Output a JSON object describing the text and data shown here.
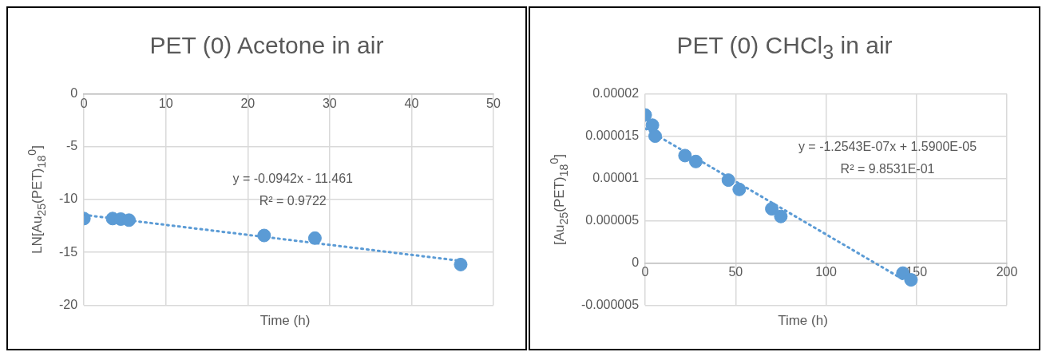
{
  "chart_data": [
    {
      "type": "scatter",
      "title": "PET (0) Acetone in air",
      "xlabel": "Time (h)",
      "ylabel": "LN[Au$_{25}$(PET)$_{18}$$^{0}$]",
      "xlim": [
        0,
        50
      ],
      "xticks": [
        0,
        10,
        20,
        30,
        40,
        50
      ],
      "ylim": [
        -20,
        0
      ],
      "yticks": [
        -20,
        -15,
        -10,
        -5,
        0
      ],
      "grid": true,
      "annotations": [
        "y = -0.0942x - 11.461",
        "R² = 0.9722"
      ],
      "series": [
        {
          "marker": "circle",
          "color": "#5b9bd5",
          "x": [
            0,
            3.5,
            4.5,
            5.5,
            22.0,
            28.2,
            46.0
          ],
          "values": [
            -11.8,
            -11.8,
            -11.85,
            -11.95,
            -13.4,
            -13.65,
            -16.15
          ]
        },
        {
          "type": "line",
          "marker": "none",
          "line_style": "dotted",
          "color": "#5b9bd5",
          "x": [
            0,
            46
          ],
          "values": [
            -11.45,
            -15.8
          ]
        }
      ]
    },
    {
      "type": "scatter",
      "title": "PET (0) CHCl$_{3}$ in air",
      "xlabel": "Time (h)",
      "ylabel": "[Au$_{25}$(PET)$_{18}$$^{0}$]",
      "xlim": [
        0,
        200
      ],
      "xticks": [
        0,
        50,
        100,
        150,
        200
      ],
      "ylim": [
        -5e-06,
        2e-05
      ],
      "yticks": [
        {
          "value": -5e-06,
          "label": "-0.000005"
        },
        {
          "value": 0,
          "label": "0"
        },
        {
          "value": 5e-06,
          "label": "0.000005"
        },
        {
          "value": 1e-05,
          "label": "0.00001"
        },
        {
          "value": 1.5e-05,
          "label": "0.000015"
        },
        {
          "value": 2e-05,
          "label": "0.00002"
        }
      ],
      "grid": true,
      "annotations": [
        "y = -1.2543E-07x + 1.5900E-05",
        "R² = 9.8531E-01"
      ],
      "series": [
        {
          "marker": "circle",
          "color": "#5b9bd5",
          "x": [
            0,
            4,
            5.5,
            22,
            28,
            46,
            52,
            70,
            75,
            142.5,
            147
          ],
          "values": [
            1.75e-05,
            1.63e-05,
            1.5e-05,
            1.27e-05,
            1.2e-05,
            9.8e-06,
            8.7e-06,
            6.4e-06,
            5.5e-06,
            -1.2e-06,
            -2e-06
          ]
        },
        {
          "type": "line",
          "marker": "none",
          "line_style": "dotted",
          "color": "#5b9bd5",
          "x": [
            0,
            147
          ],
          "values": [
            1.59e-05,
            -2.5e-06
          ]
        }
      ]
    }
  ]
}
